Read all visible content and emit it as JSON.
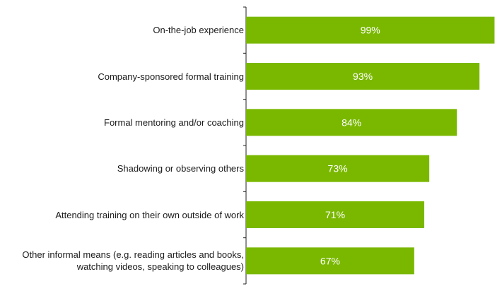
{
  "chart_data": {
    "type": "bar",
    "orientation": "horizontal",
    "categories": [
      "On-the-job experience",
      "Company-sponsored formal training",
      "Formal mentoring and/or coaching",
      "Shadowing or observing others",
      "Attending training on their own outside of work",
      "Other informal means (e.g. reading articles and books,\nwatching videos, speaking to colleagues)"
    ],
    "values": [
      99,
      93,
      84,
      73,
      71,
      67
    ],
    "value_labels": [
      "99%",
      "93%",
      "84%",
      "73%",
      "71%",
      "67%"
    ],
    "value_axis_range": [
      0,
      100
    ],
    "bar_color": "#7ab800",
    "label_color": "#ffffff",
    "grid": false,
    "legend": "none"
  }
}
